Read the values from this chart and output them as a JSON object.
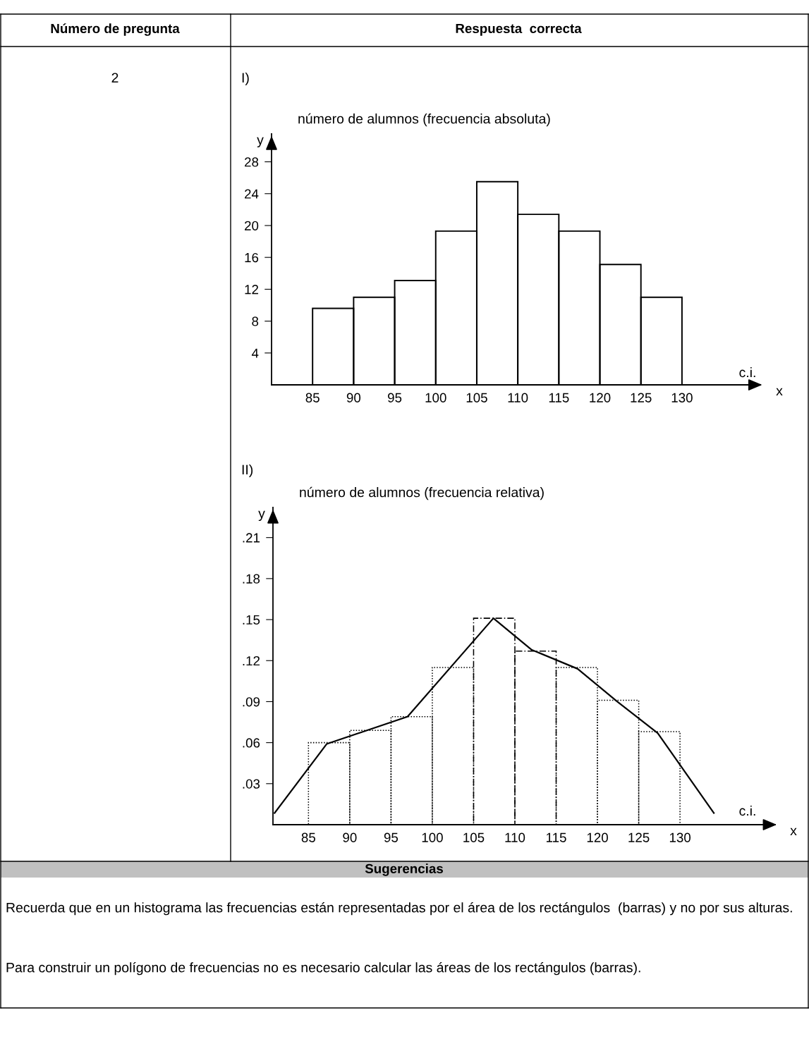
{
  "chart_data": [
    {
      "type": "histogram",
      "title": "número de alumnos (frecuencia absoluta)",
      "ylabel": "y",
      "xlabel": "x",
      "bins": [
        85,
        90,
        95,
        100,
        105,
        110,
        115,
        120,
        125,
        130
      ],
      "values": [
        9.6,
        11.0,
        13.1,
        19.3,
        25.5,
        21.4,
        19.3,
        15.1,
        11.0
      ],
      "color": "#000000",
      "xlim": [
        80,
        138
      ],
      "xticks": [
        85,
        90,
        95,
        100,
        105,
        110,
        115,
        120,
        125,
        130
      ],
      "ylim": [
        0,
        31.5
      ],
      "yticks": [
        4,
        8,
        12,
        16,
        20,
        24,
        28
      ],
      "grid": false,
      "annotations": [
        "Número de pregunta",
        "Respuesta  correcta",
        "2",
        "I)",
        "c.i."
      ]
    },
    {
      "type": "histogram",
      "title": "número de alumnos (frecuencia relativa)",
      "ylabel": "y",
      "xlabel": "x",
      "bins": [
        85,
        90,
        95,
        100,
        105,
        110,
        115,
        120,
        125,
        130
      ],
      "series": [
        {
          "color": "#000000",
          "line_style": "dotted",
          "values": [
            0.06,
            0.069,
            0.079,
            0.115,
            null,
            null,
            0.115,
            0.091,
            0.068
          ]
        },
        {
          "color": "#000000",
          "line_style": "dashed",
          "values": [
            null,
            null,
            null,
            null,
            0.151,
            0.127,
            null,
            null,
            null
          ]
        },
        {
          "type": "line",
          "color": "#000000",
          "line_style": "solid",
          "x": [
            80.9,
            87.2,
            97.0,
            107.4,
            112.0,
            117.6,
            122.4,
            127.3,
            134.1
          ],
          "values": [
            0.0085,
            0.059,
            0.079,
            0.151,
            0.128,
            0.114,
            0.09,
            0.067,
            0.0085
          ]
        }
      ],
      "xlim": [
        80.7,
        139.9
      ],
      "xticks": [
        85,
        90,
        95,
        100,
        105,
        110,
        115,
        120,
        125,
        130
      ],
      "ylim": [
        0,
        0.232
      ],
      "yticks": [
        {
          "value": 0.03,
          "label": ".03"
        },
        {
          "value": 0.06,
          "label": ".06"
        },
        {
          "value": 0.09,
          "label": ".09"
        },
        {
          "value": 0.12,
          "label": ".12"
        },
        {
          "value": 0.15,
          "label": ".15"
        },
        {
          "value": 0.18,
          "label": ".18"
        },
        {
          "value": 0.21,
          "label": ".21"
        }
      ],
      "grid": false,
      "annotations": [
        "II)",
        "c.i.",
        "Sugerencias",
        "Recuerda que en un histograma las frecuencias están representadas por el área de los rectángulos  (barras) y no por sus alturas.",
        "Para construir un polígono de frecuencias no es necesario calcular las áreas de los rectángulos (barras)."
      ]
    }
  ]
}
